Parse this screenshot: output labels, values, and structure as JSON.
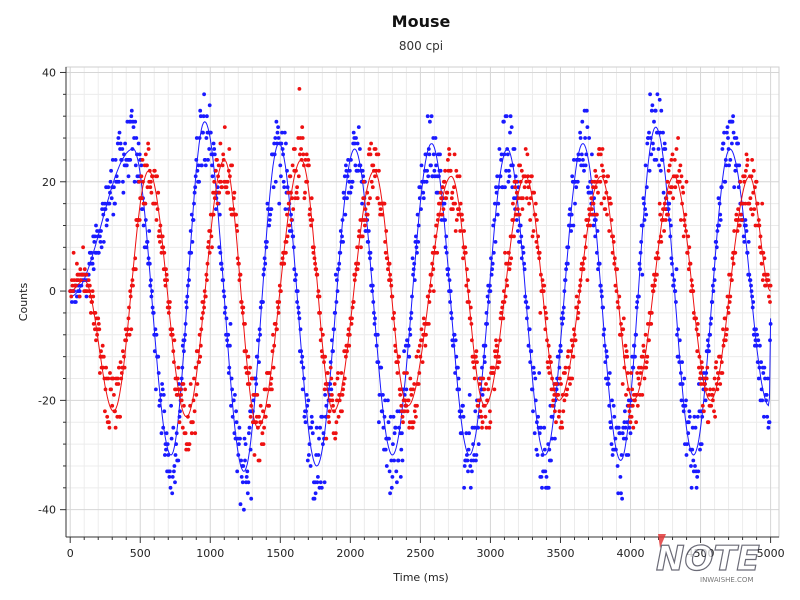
{
  "chart_data": {
    "type": "scatter",
    "title": "Mouse",
    "subtitle": "800 cpi",
    "xlabel": "Time (ms)",
    "ylabel": "Counts",
    "xlim": [
      -30,
      5060
    ],
    "ylim": [
      -45,
      41
    ],
    "xticks": [
      0,
      500,
      1000,
      1500,
      2000,
      2500,
      3000,
      3500,
      4000,
      4500,
      5000
    ],
    "yticks": [
      -40,
      -20,
      0,
      20,
      40
    ],
    "grid": true,
    "legend": "none",
    "series": [
      {
        "color": "#1a1aff",
        "style": "points-with-fitted-line",
        "peaks_x": [
          450,
          960,
          1490,
          2030,
          2580,
          3120,
          3660,
          4180,
          4710
        ],
        "peaks_y": [
          26,
          31,
          27,
          26,
          27,
          26,
          27,
          30,
          26
        ],
        "troughs_x": [
          0,
          720,
          1240,
          1760,
          2300,
          2850,
          3390,
          3930,
          4450,
          4990
        ],
        "troughs_y": [
          -1,
          -30,
          -33,
          -32,
          -30,
          -30,
          -30,
          -31,
          -30,
          -21
        ],
        "start_x": 0,
        "start_y": -1,
        "end_x": 5000,
        "end_y": -5
      },
      {
        "color": "#ee1111",
        "style": "points-with-fitted-line",
        "peaks_x": [
          100,
          560,
          1100,
          1650,
          2170,
          2720,
          3250,
          3790,
          4310,
          4850
        ],
        "peaks_y": [
          2,
          22,
          24,
          24,
          22,
          21,
          21,
          21,
          21,
          21
        ],
        "troughs_x": [
          310,
          830,
          1340,
          1880,
          2410,
          2960,
          3490,
          4020,
          4570
        ],
        "troughs_y": [
          -22,
          -23,
          -25,
          -22,
          -21,
          -21,
          -20,
          -20,
          -20
        ],
        "start_x": 0,
        "start_y": 0,
        "end_x": 5000,
        "end_y": 0
      }
    ]
  },
  "watermark": {
    "text": "NOTE",
    "subtext": "INWAISHE.COM"
  }
}
